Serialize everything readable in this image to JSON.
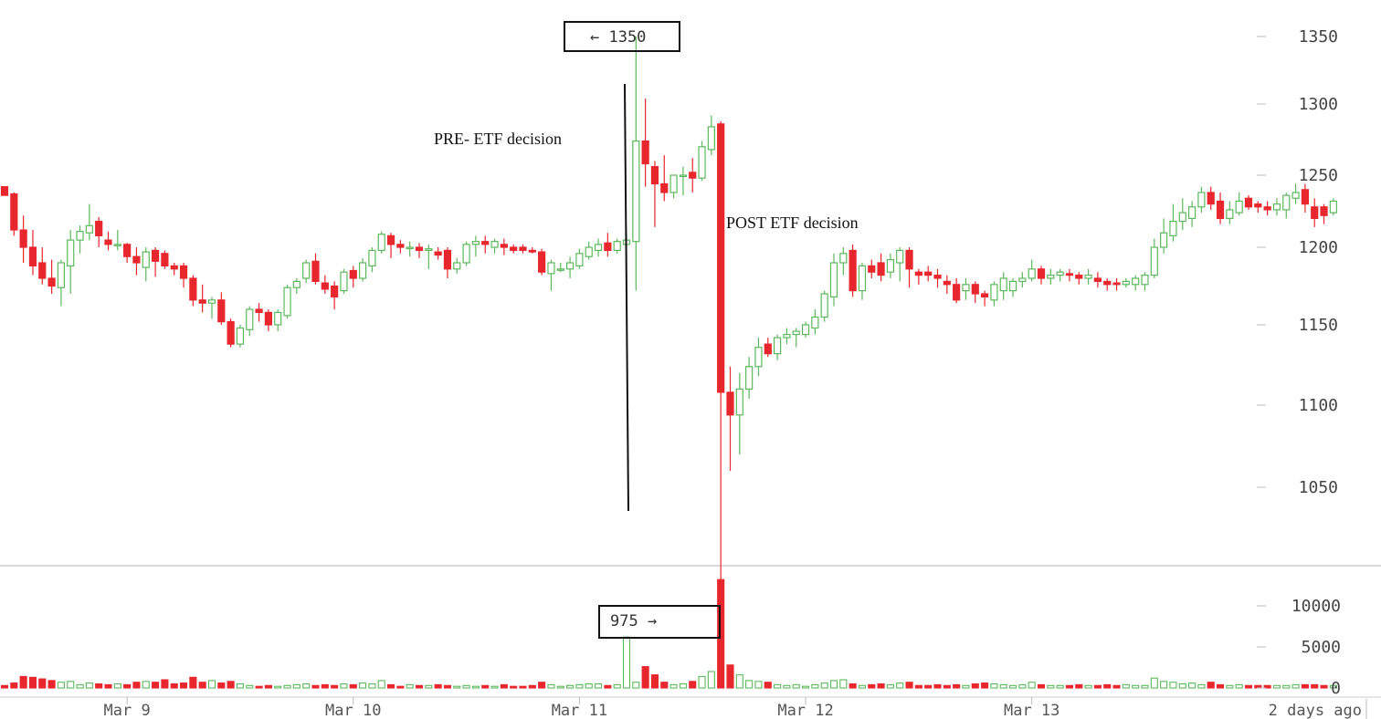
{
  "chart_data": {
    "type": "candlestick",
    "price_axis": {
      "ylim": [
        1000,
        1370
      ],
      "ticks": [
        1050,
        1100,
        1150,
        1200,
        1250,
        1300,
        1350
      ]
    },
    "volume_axis": {
      "ylim": [
        0,
        13500
      ],
      "ticks": [
        0,
        5000,
        10000
      ]
    },
    "x_axis": {
      "start": "2018-03-08T11:00",
      "end": "2018-03-13T23:00",
      "interval_minutes": 60,
      "tick_labels": [
        {
          "date": "2018-03-09",
          "label": "Mar 9"
        },
        {
          "date": "2018-03-10",
          "label": "Mar 10"
        },
        {
          "date": "2018-03-11",
          "label": "Mar 11"
        },
        {
          "date": "2018-03-12",
          "label": "Mar 12"
        },
        {
          "date": "2018-03-13",
          "label": "Mar 13"
        }
      ],
      "right_label": "2 days ago"
    },
    "colors": {
      "up": "#5cb85c",
      "down": "#e8262d"
    },
    "candles": [
      [
        1242,
        1242,
        1236,
        1236,
        300
      ],
      [
        1237,
        1238,
        1208,
        1212,
        600
      ],
      [
        1212,
        1222,
        1190,
        1200,
        1400
      ],
      [
        1200,
        1212,
        1182,
        1188,
        1300
      ],
      [
        1190,
        1200,
        1176,
        1180,
        1100
      ],
      [
        1180,
        1192,
        1170,
        1175,
        900
      ],
      [
        1174,
        1192,
        1162,
        1190,
        700
      ],
      [
        1188,
        1212,
        1170,
        1205,
        800
      ],
      [
        1205,
        1215,
        1196,
        1211,
        400
      ],
      [
        1210,
        1230,
        1205,
        1215,
        600
      ],
      [
        1218,
        1221,
        1200,
        1208,
        500
      ],
      [
        1205,
        1211,
        1198,
        1202,
        400
      ],
      [
        1202,
        1212,
        1198,
        1202,
        500
      ],
      [
        1202,
        1203,
        1190,
        1194,
        400
      ],
      [
        1194,
        1200,
        1182,
        1190,
        700
      ],
      [
        1187,
        1200,
        1178,
        1197,
        800
      ],
      [
        1198,
        1200,
        1181,
        1191,
        700
      ],
      [
        1196,
        1198,
        1186,
        1188,
        1000
      ],
      [
        1188,
        1190,
        1182,
        1186,
        500
      ],
      [
        1188,
        1190,
        1174,
        1180,
        600
      ],
      [
        1180,
        1182,
        1162,
        1166,
        1300
      ],
      [
        1166,
        1176,
        1158,
        1164,
        700
      ],
      [
        1164,
        1168,
        1154,
        1166,
        900
      ],
      [
        1166,
        1171,
        1150,
        1152,
        600
      ],
      [
        1152,
        1154,
        1136,
        1138,
        800
      ],
      [
        1138,
        1150,
        1136,
        1148,
        500
      ],
      [
        1147,
        1162,
        1143,
        1160,
        300
      ],
      [
        1160,
        1164,
        1152,
        1158,
        200
      ],
      [
        1158,
        1160,
        1146,
        1150,
        300
      ],
      [
        1150,
        1160,
        1146,
        1158,
        200
      ],
      [
        1156,
        1176,
        1154,
        1174,
        300
      ],
      [
        1174,
        1180,
        1170,
        1178,
        400
      ],
      [
        1180,
        1192,
        1177,
        1190,
        500
      ],
      [
        1191,
        1196,
        1176,
        1178,
        300
      ],
      [
        1177,
        1182,
        1170,
        1173,
        400
      ],
      [
        1175,
        1178,
        1160,
        1168,
        300
      ],
      [
        1172,
        1186,
        1170,
        1184,
        500
      ],
      [
        1185,
        1188,
        1174,
        1180,
        400
      ],
      [
        1180,
        1193,
        1178,
        1190,
        600
      ],
      [
        1188,
        1200,
        1184,
        1198,
        500
      ],
      [
        1198,
        1211,
        1196,
        1209,
        900
      ],
      [
        1208,
        1210,
        1193,
        1202,
        400
      ],
      [
        1202,
        1205,
        1196,
        1200,
        200
      ],
      [
        1200,
        1204,
        1194,
        1200,
        400
      ],
      [
        1200,
        1203,
        1193,
        1198,
        300
      ],
      [
        1198,
        1202,
        1186,
        1199,
        300
      ],
      [
        1197,
        1200,
        1192,
        1195,
        400
      ],
      [
        1198,
        1200,
        1180,
        1186,
        300
      ],
      [
        1186,
        1193,
        1183,
        1190,
        200
      ],
      [
        1190,
        1204,
        1188,
        1202,
        300
      ],
      [
        1202,
        1208,
        1194,
        1204,
        200
      ],
      [
        1204,
        1208,
        1196,
        1202,
        300
      ],
      [
        1200,
        1206,
        1196,
        1204,
        200
      ],
      [
        1202,
        1206,
        1195,
        1200,
        400
      ],
      [
        1200,
        1202,
        1196,
        1198,
        200
      ],
      [
        1200,
        1202,
        1196,
        1198,
        200
      ],
      [
        1198,
        1200,
        1196,
        1197,
        300
      ],
      [
        1197,
        1199,
        1182,
        1184,
        700
      ],
      [
        1183,
        1192,
        1172,
        1190,
        400
      ],
      [
        1186,
        1190,
        1184,
        1186,
        200
      ],
      [
        1186,
        1194,
        1180,
        1190,
        300
      ],
      [
        1188,
        1199,
        1186,
        1196,
        400
      ],
      [
        1194,
        1204,
        1192,
        1200,
        500
      ],
      [
        1198,
        1206,
        1194,
        1202,
        500
      ],
      [
        1203,
        1210,
        1194,
        1198,
        300
      ],
      [
        1198,
        1206,
        1196,
        1204,
        400
      ],
      [
        1202,
        1210,
        1172,
        1205,
        6200
      ],
      [
        1204,
        1350,
        1172,
        1274,
        700
      ],
      [
        1274,
        1304,
        1242,
        1258,
        2600
      ],
      [
        1256,
        1260,
        1214,
        1244,
        1600
      ],
      [
        1244,
        1264,
        1232,
        1238,
        700
      ],
      [
        1238,
        1248,
        1234,
        1250,
        400
      ],
      [
        1250,
        1256,
        1236,
        1250,
        500
      ],
      [
        1252,
        1262,
        1238,
        1248,
        800
      ],
      [
        1248,
        1274,
        1246,
        1270,
        1400
      ],
      [
        1268,
        1292,
        1264,
        1284,
        2000
      ],
      [
        1286,
        1288,
        975,
        1108,
        13200
      ],
      [
        1108,
        1124,
        1060,
        1094,
        2800
      ],
      [
        1094,
        1120,
        1070,
        1110,
        1600
      ],
      [
        1110,
        1130,
        1104,
        1124,
        900
      ],
      [
        1124,
        1142,
        1118,
        1136,
        800
      ],
      [
        1138,
        1142,
        1130,
        1132,
        700
      ],
      [
        1132,
        1144,
        1128,
        1142,
        400
      ],
      [
        1142,
        1148,
        1138,
        1144,
        300
      ],
      [
        1144,
        1148,
        1136,
        1146,
        400
      ],
      [
        1144,
        1152,
        1142,
        1150,
        200
      ],
      [
        1148,
        1160,
        1144,
        1155,
        400
      ],
      [
        1155,
        1172,
        1152,
        1170,
        600
      ],
      [
        1168,
        1196,
        1162,
        1190,
        900
      ],
      [
        1190,
        1200,
        1182,
        1196,
        1000
      ],
      [
        1198,
        1202,
        1168,
        1172,
        500
      ],
      [
        1172,
        1190,
        1166,
        1188,
        300
      ],
      [
        1188,
        1192,
        1180,
        1184,
        400
      ],
      [
        1190,
        1196,
        1178,
        1182,
        500
      ],
      [
        1184,
        1196,
        1180,
        1192,
        400
      ],
      [
        1190,
        1200,
        1178,
        1198,
        600
      ],
      [
        1198,
        1200,
        1174,
        1186,
        700
      ],
      [
        1184,
        1186,
        1176,
        1182,
        300
      ],
      [
        1184,
        1188,
        1178,
        1182,
        300
      ],
      [
        1182,
        1186,
        1174,
        1180,
        400
      ],
      [
        1178,
        1182,
        1170,
        1176,
        300
      ],
      [
        1176,
        1180,
        1164,
        1166,
        400
      ],
      [
        1172,
        1180,
        1166,
        1176,
        300
      ],
      [
        1176,
        1178,
        1164,
        1170,
        500
      ],
      [
        1170,
        1172,
        1162,
        1168,
        600
      ],
      [
        1166,
        1178,
        1162,
        1176,
        500
      ],
      [
        1172,
        1184,
        1166,
        1180,
        400
      ],
      [
        1172,
        1180,
        1168,
        1178,
        300
      ],
      [
        1178,
        1184,
        1174,
        1180,
        400
      ],
      [
        1180,
        1192,
        1178,
        1186,
        700
      ],
      [
        1186,
        1188,
        1176,
        1180,
        400
      ],
      [
        1180,
        1186,
        1176,
        1182,
        300
      ],
      [
        1182,
        1186,
        1178,
        1184,
        300
      ],
      [
        1183,
        1186,
        1178,
        1182,
        300
      ],
      [
        1182,
        1184,
        1176,
        1180,
        400
      ],
      [
        1180,
        1186,
        1176,
        1182,
        300
      ],
      [
        1180,
        1184,
        1174,
        1178,
        300
      ],
      [
        1178,
        1180,
        1172,
        1176,
        400
      ],
      [
        1177,
        1180,
        1172,
        1176,
        300
      ],
      [
        1176,
        1180,
        1174,
        1178,
        400
      ],
      [
        1176,
        1182,
        1172,
        1180,
        300
      ],
      [
        1176,
        1184,
        1172,
        1182,
        300
      ],
      [
        1182,
        1206,
        1180,
        1200,
        1200
      ],
      [
        1200,
        1220,
        1196,
        1210,
        800
      ],
      [
        1208,
        1230,
        1204,
        1218,
        700
      ],
      [
        1218,
        1234,
        1212,
        1224,
        500
      ],
      [
        1220,
        1232,
        1214,
        1228,
        600
      ],
      [
        1228,
        1242,
        1224,
        1238,
        400
      ],
      [
        1238,
        1242,
        1226,
        1230,
        700
      ],
      [
        1232,
        1238,
        1216,
        1220,
        400
      ],
      [
        1220,
        1232,
        1216,
        1226,
        300
      ],
      [
        1224,
        1238,
        1222,
        1232,
        400
      ],
      [
        1234,
        1236,
        1226,
        1228,
        300
      ],
      [
        1230,
        1232,
        1224,
        1228,
        300
      ],
      [
        1228,
        1232,
        1222,
        1226,
        300
      ],
      [
        1226,
        1234,
        1222,
        1230,
        300
      ],
      [
        1226,
        1238,
        1220,
        1236,
        300
      ],
      [
        1234,
        1244,
        1230,
        1238,
        400
      ],
      [
        1240,
        1244,
        1224,
        1230,
        400
      ],
      [
        1228,
        1234,
        1214,
        1220,
        400
      ],
      [
        1228,
        1230,
        1216,
        1222,
        300
      ],
      [
        1224,
        1234,
        1222,
        1232,
        300
      ]
    ]
  },
  "annotations": {
    "high_box": "← 1350",
    "low_box": "975 →",
    "pre_label": "PRE- ETF decision",
    "post_label": "POST ETF decision"
  }
}
